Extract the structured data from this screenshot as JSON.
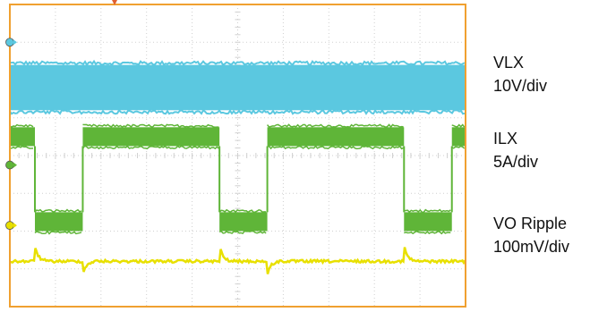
{
  "chart_data": {
    "type": "line",
    "title": "",
    "xlabel": "",
    "ylabel": "",
    "grid": true,
    "grid_divisions": {
      "x": 10,
      "y": 8
    },
    "colors": {
      "background": "#ffffff",
      "frame": "#f0a030",
      "grid": "#d0d0d0"
    },
    "markers": {
      "trigger": "#e06030"
    },
    "series": [
      {
        "name": "VLX",
        "scale": "10V/div",
        "color": "#5bc8e0",
        "style": "switching-band",
        "level_div": 5.8,
        "band_div": [
          5.2,
          6.4
        ]
      },
      {
        "name": "ILX",
        "scale": "5A/div",
        "color": "#5fb538",
        "style": "square-band",
        "high_div": [
          4.25,
          4.75
        ],
        "low_div": [
          2.0,
          2.5
        ],
        "period_div": 4.05,
        "rise_div": [
          1.6,
          5.65,
          9.7
        ],
        "fall_div": [
          0.55,
          4.6,
          8.65
        ]
      },
      {
        "name": "VO Ripple",
        "scale": "100mV/div",
        "color": "#e8e000",
        "style": "ripple",
        "level_div": 1.2,
        "spike_up_div": [
          0.55,
          4.6,
          8.65
        ],
        "spike_down_div": [
          1.6,
          5.65
        ]
      }
    ]
  },
  "labels": {
    "vlx_name": "VLX",
    "vlx_scale": "10V/div",
    "ilx_name": "ILX",
    "ilx_scale": "5A/div",
    "vo_name": "VO Ripple",
    "vo_scale": "100mV/div"
  }
}
